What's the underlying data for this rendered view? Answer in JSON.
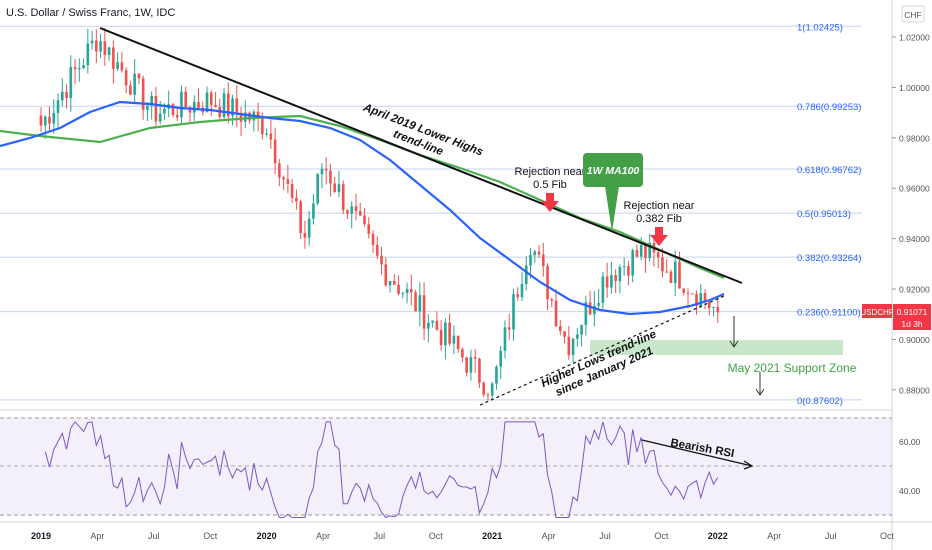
{
  "header": {
    "title": "U.S. Dollar / Swiss Franc, 1W, IDC",
    "currency": "CHF"
  },
  "price_tag": {
    "symbol": "USDCHF",
    "price": "0.91071",
    "countdown": "1d 3h"
  },
  "colors": {
    "up": "#26a69a",
    "down": "#ef5350",
    "ma_green": "#4caf50",
    "ma_blue": "#2962ff",
    "fib_line": "#c7d3ee",
    "fib_text": "#2962ff",
    "rsi_line": "#7e57c2",
    "support_zone": "#c8e6c9",
    "annotation_green": "#43a047",
    "arrow_red": "#f23645"
  },
  "fib_levels": [
    {
      "label": "1(1.02425)",
      "value": 1.02425
    },
    {
      "label": "0.786(0.99253)",
      "value": 0.99253
    },
    {
      "label": "0.618(0.96762)",
      "value": 0.96762
    },
    {
      "label": "0.5(0.95013)",
      "value": 0.95013
    },
    {
      "label": "0.382(0.93264)",
      "value": 0.93264
    },
    {
      "label": "0.236(0.91100)",
      "value": 0.911
    },
    {
      "label": "0(0.87602)",
      "value": 0.87602
    }
  ],
  "annotations": {
    "lower_highs": [
      "April 2019 Lower Highs",
      "trend-line"
    ],
    "higher_lows": [
      "Higher Lows trend-line",
      "since January 2021"
    ],
    "rejection_05": [
      "Rejection near",
      "0.5 Fib"
    ],
    "rejection_0382": [
      "Rejection near",
      "0.382 Fib"
    ],
    "ma100_badge": "1W MA100",
    "support_zone": "May 2021 Support Zone",
    "bearish_rsi": "Bearish RSI"
  },
  "chart_data": {
    "type": "candlestick",
    "x_ticks": [
      "2019",
      "Apr",
      "Jul",
      "Oct",
      "2020",
      "Apr",
      "Jul",
      "Oct",
      "2021",
      "Apr",
      "Jul",
      "Oct",
      "2022",
      "Apr",
      "Jul",
      "Oct"
    ],
    "y_ticks": [
      "1.02000",
      "1.00000",
      "0.98000",
      "0.96000",
      "0.94000",
      "0.92000",
      "0.90000",
      "0.88000"
    ],
    "ylim": [
      0.872,
      1.03
    ],
    "rsi_ticks": [
      "60.00",
      "40.00"
    ],
    "rsi_ylim": [
      27,
      72
    ],
    "key_prices": [
      {
        "x": "2019-01",
        "y": 0.985
      },
      {
        "x": "2019-04",
        "y": 1.02
      },
      {
        "x": "2019-07",
        "y": 0.99
      },
      {
        "x": "2019-10",
        "y": 0.995
      },
      {
        "x": "2020-01",
        "y": 0.985
      },
      {
        "x": "2020-03",
        "y": 0.94
      },
      {
        "x": "2020-04",
        "y": 0.97
      },
      {
        "x": "2020-07",
        "y": 0.93
      },
      {
        "x": "2020-10",
        "y": 0.905
      },
      {
        "x": "2021-01",
        "y": 0.88
      },
      {
        "x": "2021-03",
        "y": 0.94
      },
      {
        "x": "2021-05",
        "y": 0.898
      },
      {
        "x": "2021-07",
        "y": 0.925
      },
      {
        "x": "2021-09",
        "y": 0.935
      },
      {
        "x": "2021-11",
        "y": 0.925
      },
      {
        "x": "2022-01",
        "y": 0.91071
      }
    ]
  }
}
